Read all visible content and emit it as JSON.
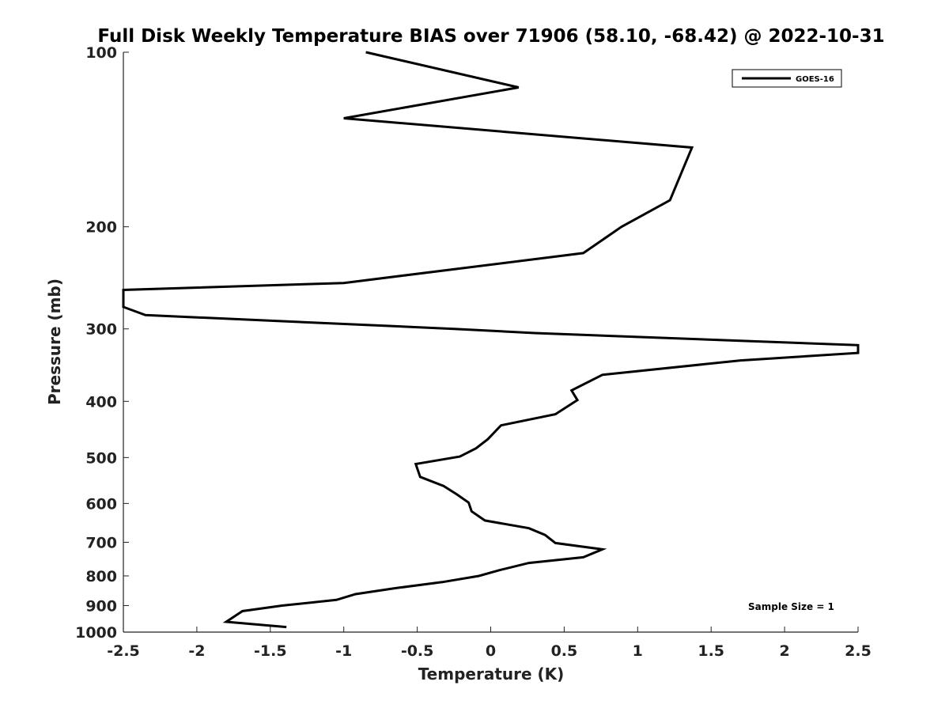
{
  "chart_data": {
    "type": "line",
    "title": "Full Disk Weekly Temperature BIAS over 71906 (58.10, -68.42) @ 2022-10-31",
    "xlabel": "Temperature (K)",
    "ylabel": "Pressure (mb)",
    "xlim": [
      -2.5,
      2.5
    ],
    "ylim": [
      100,
      1000
    ],
    "y_scale": "log",
    "y_reversed": true,
    "grid": false,
    "legend_position": "top-right",
    "x_ticks": [
      "-2.5",
      "-2",
      "-1.5",
      "-1",
      "-0.5",
      "0",
      "0.5",
      "1",
      "1.5",
      "2",
      "2.5"
    ],
    "x_tick_values": [
      -2.5,
      -2,
      -1.5,
      -1,
      -0.5,
      0,
      0.5,
      1,
      1.5,
      2,
      2.5
    ],
    "y_ticks": [
      "100",
      "200",
      "300",
      "400",
      "500",
      "600",
      "700",
      "800",
      "900",
      "1000"
    ],
    "y_tick_values": [
      100,
      200,
      300,
      400,
      500,
      600,
      700,
      800,
      900,
      1000
    ],
    "annotation": "Sample Size = 1",
    "series": [
      {
        "name": "GOES-16",
        "color": "#000000",
        "x": [
          -0.85,
          0.19,
          -1.0,
          1.37,
          1.22,
          0.89,
          0.63,
          -1.0,
          -2.5,
          -2.5,
          -2.35,
          -0.25,
          0.3,
          2.5,
          2.5,
          1.7,
          0.76,
          0.55,
          0.59,
          0.44,
          0.07,
          -0.02,
          -0.1,
          -0.21,
          -0.51,
          -0.48,
          -0.32,
          -0.23,
          -0.15,
          -0.13,
          -0.04,
          0.26,
          0.37,
          0.44,
          0.76,
          0.63,
          0.26,
          0.06,
          -0.08,
          -0.33,
          -0.65,
          -0.92,
          -1.05,
          -1.42,
          -1.69,
          -1.8,
          -1.39
        ],
        "y": [
          100,
          115,
          130,
          146,
          180,
          200,
          222,
          250,
          257,
          275,
          284,
          300,
          305,
          320,
          330,
          340,
          360,
          383,
          398,
          421,
          440,
          465,
          482,
          498,
          513,
          540,
          560,
          579,
          598,
          619,
          642,
          662,
          680,
          702,
          720,
          743,
          760,
          782,
          800,
          820,
          840,
          860,
          880,
          900,
          920,
          960,
          980
        ]
      }
    ]
  }
}
